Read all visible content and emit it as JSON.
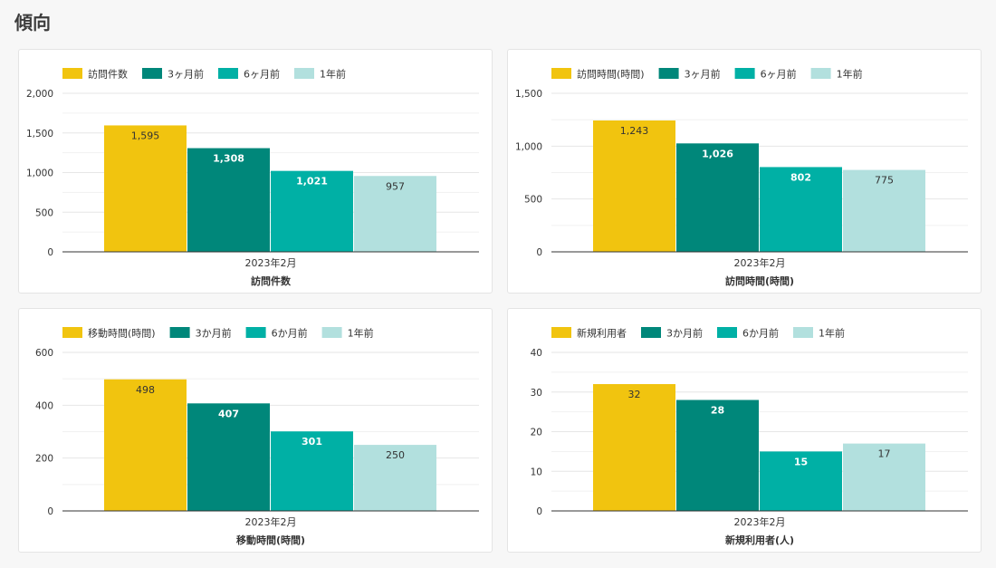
{
  "page": {
    "title": "傾向"
  },
  "colors": {
    "current": "#f1c40f",
    "m3": "#00877a",
    "m6": "#00b0a5",
    "y1": "#b2e0de"
  },
  "chart_data": [
    {
      "type": "bar",
      "title": "",
      "xlabel": "訪問件数",
      "ylabel": "",
      "categories": [
        "2023年2月"
      ],
      "ylim": [
        0,
        2000
      ],
      "yticks": [
        0,
        500,
        1000,
        1500,
        2000
      ],
      "yticklabels": [
        "0",
        "500",
        "1,000",
        "1,500",
        "2,000"
      ],
      "legend_position": "top-left",
      "grid": true,
      "series": [
        {
          "name": "訪問件数",
          "values": [
            1595
          ],
          "labels": [
            "1,595"
          ]
        },
        {
          "name": "3ヶ月前",
          "values": [
            1308
          ],
          "labels": [
            "1,308"
          ]
        },
        {
          "name": "6ヶ月前",
          "values": [
            1021
          ],
          "labels": [
            "1,021"
          ]
        },
        {
          "name": "1年前",
          "values": [
            957
          ],
          "labels": [
            "957"
          ]
        }
      ]
    },
    {
      "type": "bar",
      "title": "",
      "xlabel": "訪問時間(時間)",
      "ylabel": "",
      "categories": [
        "2023年2月"
      ],
      "ylim": [
        0,
        1500
      ],
      "yticks": [
        0,
        500,
        1000,
        1500
      ],
      "yticklabels": [
        "0",
        "500",
        "1,000",
        "1,500"
      ],
      "legend_position": "top-left",
      "grid": true,
      "series": [
        {
          "name": "訪問時間(時間)",
          "values": [
            1243
          ],
          "labels": [
            "1,243"
          ]
        },
        {
          "name": "3ヶ月前",
          "values": [
            1026
          ],
          "labels": [
            "1,026"
          ]
        },
        {
          "name": "6ヶ月前",
          "values": [
            802
          ],
          "labels": [
            "802"
          ]
        },
        {
          "name": "1年前",
          "values": [
            775
          ],
          "labels": [
            "775"
          ]
        }
      ]
    },
    {
      "type": "bar",
      "title": "",
      "xlabel": "移動時間(時間)",
      "ylabel": "",
      "categories": [
        "2023年2月"
      ],
      "ylim": [
        0,
        600
      ],
      "yticks": [
        0,
        200,
        400,
        600
      ],
      "yticklabels": [
        "0",
        "200",
        "400",
        "600"
      ],
      "legend_position": "top-left",
      "grid": true,
      "series": [
        {
          "name": "移動時間(時間)",
          "values": [
            498
          ],
          "labels": [
            "498"
          ]
        },
        {
          "name": "3か月前",
          "values": [
            407
          ],
          "labels": [
            "407"
          ]
        },
        {
          "name": "6か月前",
          "values": [
            301
          ],
          "labels": [
            "301"
          ]
        },
        {
          "name": "1年前",
          "values": [
            250
          ],
          "labels": [
            "250"
          ]
        }
      ]
    },
    {
      "type": "bar",
      "title": "",
      "xlabel": "新規利用者(人)",
      "ylabel": "",
      "categories": [
        "2023年2月"
      ],
      "ylim": [
        0,
        40
      ],
      "yticks": [
        0,
        10,
        20,
        30,
        40
      ],
      "yticklabels": [
        "0",
        "10",
        "20",
        "30",
        "40"
      ],
      "legend_position": "top-left",
      "grid": true,
      "series": [
        {
          "name": "新規利用者",
          "values": [
            32
          ],
          "labels": [
            "32"
          ]
        },
        {
          "name": "3か月前",
          "values": [
            28
          ],
          "labels": [
            "28"
          ]
        },
        {
          "name": "6か月前",
          "values": [
            15
          ],
          "labels": [
            "15"
          ]
        },
        {
          "name": "1年前",
          "values": [
            17
          ],
          "labels": [
            "17"
          ]
        }
      ]
    }
  ]
}
